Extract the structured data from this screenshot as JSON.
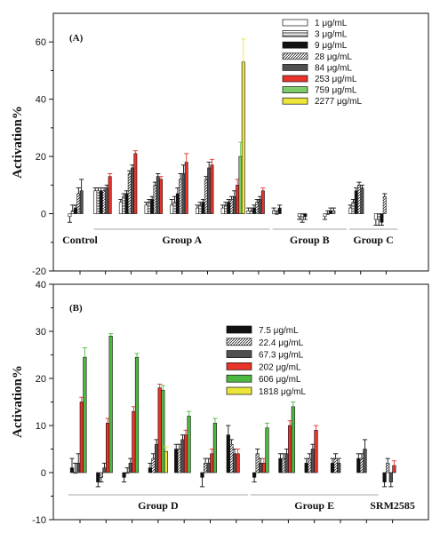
{
  "shared": {
    "ylabel": "Activation%"
  },
  "chart_data": [
    {
      "panel": "(A)",
      "type": "bar",
      "ylabel": "Activation%",
      "ylim": [
        -20,
        70
      ],
      "yticks": [
        -20,
        0,
        20,
        40,
        60
      ],
      "legend_position": "top-right",
      "legend": [
        {
          "label": "1 μg/mL",
          "color": "#ffffff",
          "pattern": "solid"
        },
        {
          "label": "3 μg/mL",
          "color": "#8a8a8a",
          "pattern": "hstripe"
        },
        {
          "label": "9 μg/mL",
          "color": "#111111",
          "pattern": "solid"
        },
        {
          "label": "28 μg/mL",
          "color": "#ffffff",
          "pattern": "diag"
        },
        {
          "label": "84 μg/mL",
          "color": "#505050",
          "pattern": "solid"
        },
        {
          "label": "253 μg/mL",
          "color": "#e8322a",
          "pattern": "solid"
        },
        {
          "label": "759 μg/mL",
          "color": "#7ccc6a",
          "pattern": "solid"
        },
        {
          "label": "2277 μg/mL",
          "color": "#ece63a",
          "pattern": "solid"
        }
      ],
      "group_labels": [
        {
          "label": "Control",
          "from": 0,
          "to": 0,
          "underline": false
        },
        {
          "label": "Group A",
          "from": 1,
          "to": 7,
          "underline": true
        },
        {
          "label": "Group B",
          "from": 8,
          "to": 10,
          "underline": true
        },
        {
          "label": "Group C",
          "from": 11,
          "to": 12,
          "underline": true
        }
      ],
      "samples": [
        {
          "values": [
            -1,
            1,
            2,
            7,
            8,
            null,
            null,
            null
          ],
          "errors": [
            2,
            2,
            1,
            2,
            4,
            null,
            null,
            null
          ]
        },
        {
          "values": [
            8,
            8,
            8,
            8,
            9,
            13,
            null,
            null
          ],
          "errors": [
            1,
            1,
            1,
            1,
            1,
            1,
            null,
            null
          ]
        },
        {
          "values": [
            4,
            6,
            7,
            14,
            16,
            21,
            null,
            null
          ],
          "errors": [
            1,
            1,
            1,
            1,
            1,
            1,
            null,
            null
          ]
        },
        {
          "values": [
            3,
            4,
            5,
            10,
            13,
            12,
            null,
            null
          ],
          "errors": [
            1,
            1,
            1,
            1,
            1,
            1,
            null,
            null
          ]
        },
        {
          "values": [
            3,
            4,
            7,
            12,
            14,
            18,
            null,
            null
          ],
          "errors": [
            2,
            2,
            2,
            2,
            3,
            3,
            null,
            null
          ]
        },
        {
          "values": [
            2,
            3,
            4,
            12,
            16,
            17,
            null,
            null
          ],
          "errors": [
            1,
            1,
            1,
            1,
            2,
            2,
            null,
            null
          ]
        },
        {
          "values": [
            2,
            3,
            4,
            5,
            6,
            10,
            20,
            53
          ],
          "errors": [
            1,
            1,
            1,
            1,
            2,
            2,
            5,
            8
          ]
        },
        {
          "values": [
            1,
            1,
            2,
            4,
            5,
            8,
            null,
            null
          ],
          "errors": [
            1,
            1,
            1,
            1,
            1,
            1,
            null,
            null
          ]
        },
        {
          "values": [
            1,
            0,
            2,
            null,
            null,
            null,
            null,
            null
          ],
          "errors": [
            1,
            1,
            1,
            null,
            null,
            null,
            null,
            null
          ]
        },
        {
          "values": [
            -1,
            -2,
            -1,
            null,
            null,
            null,
            null,
            null
          ],
          "errors": [
            1,
            1,
            1,
            null,
            null,
            null,
            null,
            null
          ]
        },
        {
          "values": [
            -1,
            0,
            1,
            1,
            null,
            null,
            null,
            null
          ],
          "errors": [
            1,
            1,
            1,
            1,
            null,
            null,
            null,
            null
          ]
        },
        {
          "values": [
            2,
            4,
            8,
            10,
            9,
            null,
            null,
            null
          ],
          "errors": [
            1,
            1,
            1,
            1,
            1,
            null,
            null,
            null
          ]
        },
        {
          "values": [
            -2,
            -2,
            -3,
            6,
            null,
            null,
            null,
            null
          ],
          "errors": [
            2,
            2,
            1,
            1,
            null,
            null,
            null,
            null
          ]
        }
      ]
    },
    {
      "panel": "(B)",
      "type": "bar",
      "ylabel": "Activation%",
      "ylim": [
        -10,
        40
      ],
      "yticks": [
        -10,
        0,
        10,
        20,
        30,
        40
      ],
      "legend_position": "top-center",
      "legend": [
        {
          "label": "7.5 μg/mL",
          "color": "#111111",
          "pattern": "solid"
        },
        {
          "label": "22.4 μg/mL",
          "color": "#ffffff",
          "pattern": "diag"
        },
        {
          "label": "67.3 μg/mL",
          "color": "#505050",
          "pattern": "solid"
        },
        {
          "label": "202 μg/mL",
          "color": "#e8322a",
          "pattern": "solid"
        },
        {
          "label": "606 μg/mL",
          "color": "#4db83f",
          "pattern": "solid"
        },
        {
          "label": "1818 μg/mL",
          "color": "#ece63a",
          "pattern": "solid"
        }
      ],
      "group_labels": [
        {
          "label": "Group D",
          "from": 0,
          "to": 6,
          "underline": true
        },
        {
          "label": "Group E",
          "from": 7,
          "to": 11,
          "underline": true
        },
        {
          "label": "SRM2585",
          "from": 12,
          "to": 12,
          "underline": false
        }
      ],
      "samples": [
        {
          "values": [
            1,
            0,
            2,
            15,
            24.5,
            null
          ],
          "errors": [
            2,
            2,
            2,
            1,
            2,
            null
          ]
        },
        {
          "values": [
            -2,
            -1,
            1,
            10.5,
            29,
            null
          ],
          "errors": [
            1,
            1,
            1,
            1,
            0.5,
            null
          ]
        },
        {
          "values": [
            -1,
            0,
            2,
            13,
            24.5,
            null
          ],
          "errors": [
            1,
            1,
            1,
            1,
            0.8,
            null
          ]
        },
        {
          "values": [
            1,
            3,
            6,
            18,
            17.5,
            4.5
          ],
          "errors": [
            1,
            1,
            1,
            0.8,
            1,
            1
          ]
        },
        {
          "values": [
            5,
            5,
            7,
            8,
            12,
            null
          ],
          "errors": [
            1,
            1,
            1,
            1,
            1,
            null
          ]
        },
        {
          "values": [
            -1,
            2,
            2,
            4,
            10.5,
            null
          ],
          "errors": [
            2,
            1,
            1,
            1,
            1,
            null
          ]
        },
        {
          "values": [
            8,
            6,
            4,
            4,
            null,
            null
          ],
          "errors": [
            2,
            1,
            1,
            1,
            null,
            null
          ]
        },
        {
          "values": [
            -1,
            4,
            2,
            2,
            9.5,
            null
          ],
          "errors": [
            1,
            1,
            1,
            1,
            1,
            null
          ]
        },
        {
          "values": [
            3,
            3,
            4,
            10,
            14,
            null
          ],
          "errors": [
            1,
            1,
            1,
            1,
            1,
            null
          ]
        },
        {
          "values": [
            2,
            3,
            5,
            9,
            null,
            null
          ],
          "errors": [
            1,
            1,
            1,
            1,
            null,
            null
          ]
        },
        {
          "values": [
            2,
            3,
            2,
            null,
            null,
            null
          ],
          "errors": [
            1,
            1,
            1,
            null,
            null,
            null
          ]
        },
        {
          "values": [
            3,
            3,
            5,
            null,
            null,
            null
          ],
          "errors": [
            1,
            1,
            2,
            null,
            null,
            null
          ]
        },
        {
          "values": [
            -2,
            2,
            -2,
            1.5,
            null,
            null
          ],
          "errors": [
            1,
            1,
            1,
            1,
            null,
            null
          ]
        }
      ]
    }
  ]
}
